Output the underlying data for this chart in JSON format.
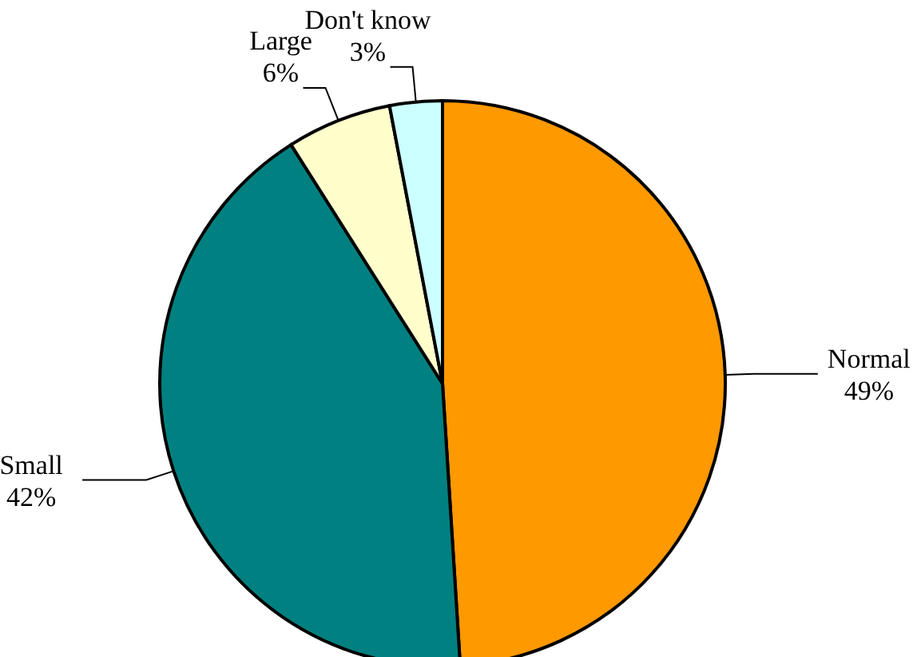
{
  "chart_data": {
    "type": "pie",
    "categories": [
      "Normal",
      "Small",
      "Large",
      "Don't know"
    ],
    "values": [
      49,
      42,
      6,
      3
    ],
    "colors": [
      "#ff9900",
      "#008080",
      "#ffffcc",
      "#ccffff"
    ],
    "value_labels": [
      "49%",
      "42%",
      "6%",
      "3%"
    ]
  }
}
